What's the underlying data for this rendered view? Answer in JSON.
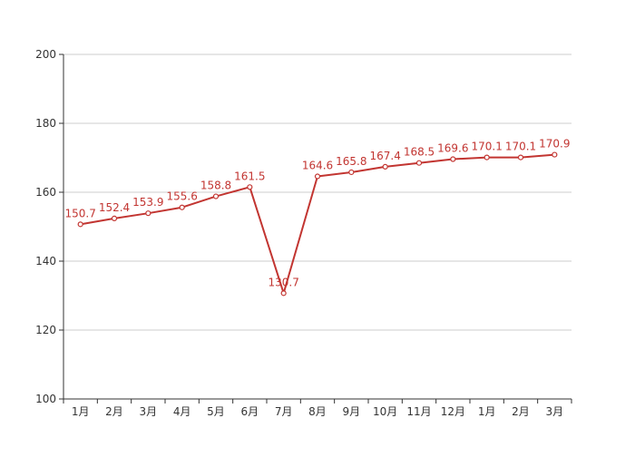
{
  "chart_data": {
    "type": "line",
    "categories": [
      "1月",
      "2月",
      "3月",
      "4月",
      "5月",
      "6月",
      "7月",
      "8月",
      "9月",
      "10月",
      "11月",
      "12月",
      "1月",
      "2月",
      "3月"
    ],
    "series": [
      {
        "values": [
          150.7,
          152.4,
          153.9,
          155.6,
          158.8,
          161.5,
          130.7,
          164.6,
          165.8,
          167.4,
          168.5,
          169.6,
          170.1,
          170.1,
          170.9
        ],
        "color": "#c23531"
      }
    ],
    "title": "",
    "xlabel": "",
    "ylabel": "",
    "ylim": [
      100,
      200
    ],
    "yticks": [
      100,
      120,
      140,
      160,
      180,
      200
    ],
    "grid": true,
    "data_labels": true,
    "line_color": "#c23531",
    "axis_color": "#333333",
    "grid_color": "#cccccc"
  }
}
